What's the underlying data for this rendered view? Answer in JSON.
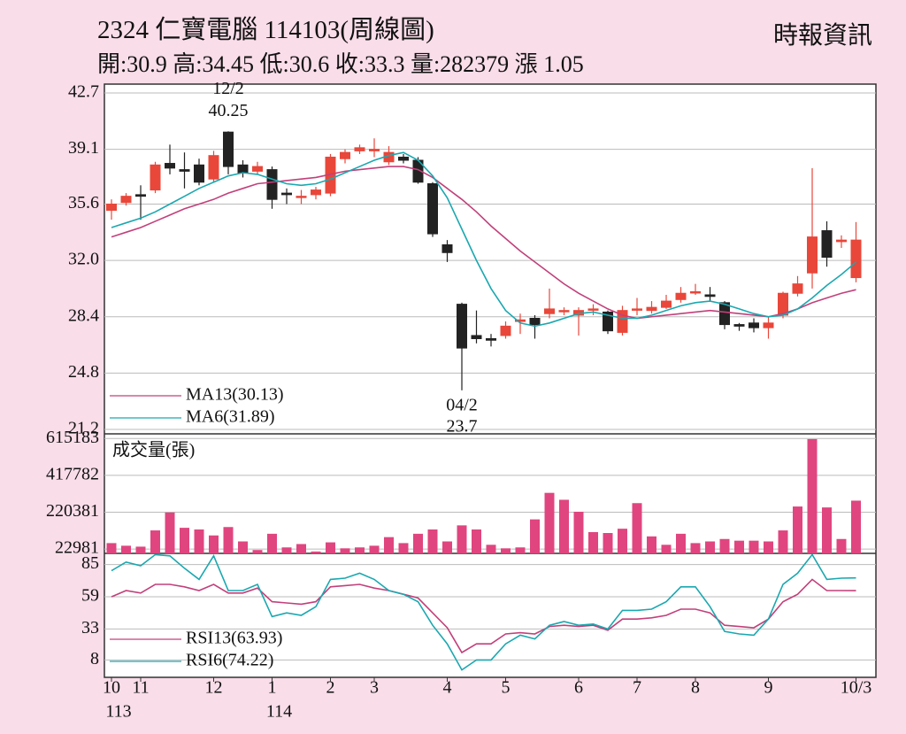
{
  "header": {
    "title": "2324  仁寶電腦 114103(周線圖)",
    "source": "時報資訊",
    "quote_labels": {
      "open": "開:",
      "high": "高:",
      "low": "低:",
      "close": "收:",
      "volume": "量:",
      "change": "漲"
    },
    "change": 1.05
  },
  "chart_data": [
    {
      "type": "candlestick",
      "categories": [
        "10",
        null,
        "11",
        null,
        null,
        null,
        null,
        "12",
        null,
        null,
        null,
        "1",
        null,
        null,
        null,
        "2",
        null,
        null,
        "3",
        null,
        null,
        null,
        null,
        "4",
        null,
        null,
        null,
        "5",
        null,
        null,
        null,
        null,
        "6",
        null,
        null,
        null,
        "7",
        null,
        null,
        null,
        "8",
        null,
        null,
        null,
        null,
        "9",
        null,
        null,
        null,
        null,
        null,
        "10/3"
      ],
      "year_labels": [
        {
          "index": 0,
          "label": "113"
        },
        {
          "index": 11,
          "label": "114"
        }
      ],
      "candles": {
        "open": [
          35.2,
          35.7,
          36.2,
          36.5,
          38.2,
          37.8,
          38.1,
          37.2,
          40.2,
          38.1,
          37.7,
          37.8,
          36.3,
          36.1,
          36.2,
          36.3,
          38.5,
          39.0,
          39.0,
          38.3,
          38.6,
          38.4,
          36.9,
          33.0,
          29.2,
          27.2,
          27.0,
          27.2,
          28.1,
          28.3,
          28.6,
          28.8,
          28.5,
          28.9,
          28.7,
          27.4,
          28.9,
          28.8,
          29.0,
          29.5,
          30.0,
          29.8,
          29.3,
          27.9,
          28.0,
          27.7,
          28.5,
          29.9,
          31.2,
          33.9,
          33.2,
          30.9
        ],
        "high": [
          35.9,
          36.3,
          36.8,
          38.3,
          39.4,
          38.9,
          38.5,
          39.0,
          40.25,
          38.4,
          38.3,
          38.0,
          36.6,
          36.5,
          36.7,
          38.8,
          39.1,
          39.4,
          39.8,
          39.3,
          38.8,
          38.6,
          37.0,
          33.3,
          29.3,
          28.8,
          27.3,
          28.1,
          28.6,
          28.5,
          30.2,
          29.0,
          29.0,
          29.2,
          28.8,
          29.1,
          29.6,
          29.4,
          29.8,
          30.3,
          30.5,
          30.3,
          29.4,
          28.0,
          28.3,
          28.4,
          30.0,
          31.0,
          37.9,
          34.5,
          33.6,
          34.45
        ],
        "low": [
          34.6,
          35.5,
          34.6,
          36.3,
          37.5,
          36.6,
          36.8,
          37.0,
          37.5,
          37.3,
          37.5,
          35.3,
          35.6,
          35.6,
          35.9,
          36.1,
          38.2,
          38.8,
          38.6,
          38.1,
          38.2,
          36.9,
          33.5,
          31.9,
          23.7,
          26.7,
          26.5,
          27.0,
          27.3,
          27.0,
          28.3,
          28.5,
          27.2,
          28.5,
          27.3,
          27.2,
          28.5,
          28.6,
          28.9,
          29.3,
          29.8,
          29.4,
          27.6,
          27.5,
          27.4,
          27.0,
          28.3,
          29.7,
          30.2,
          31.6,
          32.8,
          30.6
        ],
        "close": [
          35.6,
          36.1,
          36.1,
          38.1,
          37.9,
          37.7,
          37.0,
          38.7,
          38.0,
          37.6,
          38.0,
          35.9,
          36.2,
          36.1,
          36.5,
          38.6,
          38.9,
          39.2,
          39.1,
          38.9,
          38.4,
          37.0,
          33.7,
          32.5,
          26.4,
          27.0,
          26.9,
          27.8,
          28.2,
          27.9,
          28.9,
          28.8,
          28.8,
          28.9,
          27.5,
          28.8,
          28.9,
          29.0,
          29.4,
          29.9,
          30.0,
          29.7,
          27.9,
          27.8,
          27.7,
          28.0,
          29.9,
          30.5,
          33.5,
          32.2,
          33.3,
          33.3
        ]
      },
      "up_color": "#e8473a",
      "down_color": "#222222",
      "series": [
        {
          "name": "MA13(30.13)",
          "color": "#c2407a",
          "values": [
            33.5,
            33.8,
            34.1,
            34.5,
            34.9,
            35.3,
            35.6,
            35.9,
            36.3,
            36.6,
            36.9,
            37.0,
            37.1,
            37.2,
            37.3,
            37.5,
            37.7,
            37.8,
            37.9,
            38.0,
            38.0,
            37.8,
            37.3,
            36.6,
            35.9,
            35.1,
            34.2,
            33.4,
            32.6,
            31.9,
            31.2,
            30.5,
            29.9,
            29.4,
            28.9,
            28.5,
            28.3,
            28.4,
            28.5,
            28.6,
            28.7,
            28.8,
            28.7,
            28.6,
            28.5,
            28.4,
            28.6,
            28.9,
            29.3,
            29.6,
            29.9,
            30.13
          ]
        },
        {
          "name": "MA6(31.89)",
          "color": "#1aa8b0",
          "values": [
            34.1,
            34.4,
            34.7,
            35.1,
            35.6,
            36.1,
            36.6,
            37.0,
            37.4,
            37.6,
            37.5,
            37.2,
            36.9,
            36.8,
            36.9,
            37.2,
            37.6,
            38.0,
            38.4,
            38.7,
            38.9,
            38.4,
            37.4,
            36.0,
            34.0,
            32.0,
            30.2,
            28.8,
            28.0,
            27.8,
            28.0,
            28.3,
            28.6,
            28.7,
            28.5,
            28.3,
            28.3,
            28.5,
            28.8,
            29.1,
            29.3,
            29.4,
            29.2,
            28.9,
            28.6,
            28.4,
            28.5,
            28.9,
            29.6,
            30.4,
            31.1,
            31.89
          ]
        }
      ],
      "annotations": [
        {
          "label": "12/2",
          "index": 8,
          "side": "high"
        },
        {
          "label": "04/2",
          "index": 24,
          "side": "low"
        }
      ],
      "ylim": [
        21.2,
        42.7
      ],
      "yticks": [
        42.7,
        39.1,
        35.6,
        {
          "value": 32,
          "label": "32.0"
        },
        28.4,
        24.8,
        21.2
      ],
      "grid": true
    },
    {
      "type": "bar",
      "label": "成交量(張)",
      "color": "#e0457f",
      "values": [
        55000,
        41000,
        36000,
        123000,
        219000,
        137000,
        128000,
        96000,
        141000,
        64000,
        18000,
        105000,
        32000,
        50000,
        10000,
        59000,
        27000,
        32000,
        41000,
        87000,
        55000,
        105000,
        128000,
        64000,
        150000,
        128000,
        46000,
        27000,
        32000,
        182000,
        324000,
        287000,
        223000,
        114000,
        109000,
        132000,
        269000,
        91000,
        46000,
        105000,
        55000,
        64000,
        77000,
        68000,
        68000,
        64000,
        123000,
        251000,
        612000,
        246000,
        77000,
        282379
      ],
      "ylim": [
        0,
        640000
      ],
      "yticks": [
        615183,
        417782,
        220381,
        22981
      ],
      "grid": true
    },
    {
      "type": "line",
      "series": [
        {
          "name": "RSI13(63.93)",
          "color": "#c2407a",
          "values": [
            59,
            64,
            62,
            69,
            69,
            67,
            64,
            69,
            62,
            62,
            66,
            55,
            54,
            53,
            55,
            67,
            68,
            69,
            66,
            64,
            61,
            58,
            46,
            34,
            14,
            21,
            21,
            29,
            30,
            29,
            35,
            36,
            35,
            36,
            32,
            41,
            41,
            42,
            44,
            49,
            49,
            46,
            36,
            35,
            34,
            41,
            55,
            61,
            73,
            64,
            64,
            63.93
          ]
        },
        {
          "name": "RSI6(74.22)",
          "color": "#1aa8b0",
          "values": [
            80,
            87,
            84,
            93,
            92,
            82,
            73,
            92,
            64,
            64,
            69,
            43,
            46,
            44,
            51,
            73,
            74,
            78,
            73,
            64,
            61,
            55,
            36,
            21,
            0,
            8,
            8,
            21,
            28,
            25,
            36,
            39,
            36,
            37,
            33,
            48,
            48,
            49,
            55,
            67,
            67,
            51,
            31,
            29,
            28,
            41,
            69,
            78,
            93,
            73,
            74,
            74.22
          ]
        }
      ],
      "ylim": [
        -6,
        94
      ],
      "yticks": [
        85,
        59,
        33,
        8
      ],
      "grid": true
    }
  ]
}
